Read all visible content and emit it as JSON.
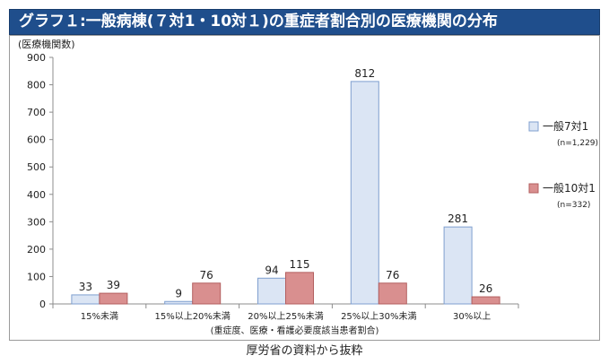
{
  "header": {
    "title": "グラフ１:一般病棟(７対1・10対１)の重症者割合別の医療機関の分布"
  },
  "source_note": "厚労省の資料から抜粋",
  "colors": {
    "title_background": "#1f4e8c",
    "series_7": "#dbe5f4",
    "series_7_border": "#7f9fcf",
    "series_10": "#d98f8f",
    "series_10_border": "#b35f5f"
  },
  "chart_data": {
    "type": "bar",
    "title": "グラフ１:一般病棟(７対1・10対１)の重症者割合別の医療機関の分布",
    "ylabel": "(医療機関数)",
    "xlabel": "(重症度、医療・看護必要度該当患者割合)",
    "ylim": [
      0,
      900
    ],
    "yticks": [
      "0",
      "100",
      "200",
      "300",
      "400",
      "500",
      "600",
      "700",
      "800",
      "900"
    ],
    "grid": false,
    "legend_position": "right",
    "categories": [
      "15%未満",
      "15%以上20%未満",
      "20%以上25%未満",
      "25%以上30%未満",
      "30%以上"
    ],
    "series": [
      {
        "name": "一般7対1",
        "note": "(n=1,229)",
        "values": [
          33,
          9,
          94,
          812,
          281
        ],
        "labels": [
          "33",
          "9",
          "94",
          "812",
          "281"
        ]
      },
      {
        "name": "一般10対1",
        "note": "(n=332)",
        "values": [
          39,
          76,
          115,
          76,
          26
        ],
        "labels": [
          "39",
          "76",
          "115",
          "76",
          "26"
        ]
      }
    ]
  }
}
